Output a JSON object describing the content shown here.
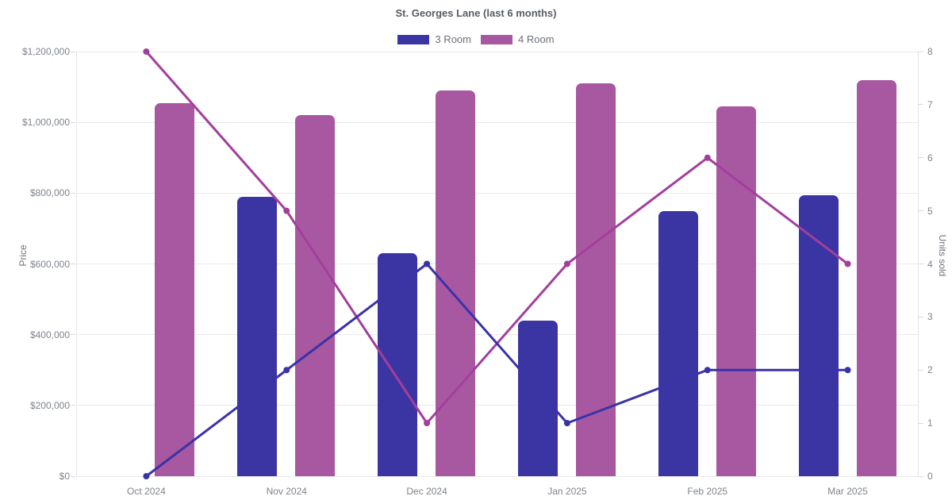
{
  "title": "St. Georges Lane (last 6 months)",
  "legend": {
    "position": "top",
    "items": [
      {
        "label": "3 Room",
        "color": "#3b35a3"
      },
      {
        "label": "4 Room",
        "color": "#a858a1"
      }
    ]
  },
  "chart_data": {
    "type": "bar",
    "subtype": "grouped bars (price, left axis) + lines with point markers (units sold, right axis)",
    "title": "St. Georges Lane (last 6 months)",
    "categories": [
      "Oct 2024",
      "Nov 2024",
      "Dec 2024",
      "Jan 2025",
      "Feb 2025",
      "Mar 2025"
    ],
    "bar_series": [
      {
        "name": "3 Room",
        "yaxis": "left",
        "color": "#3b35a3",
        "values": [
          null,
          790000,
          630000,
          440000,
          750000,
          795000
        ]
      },
      {
        "name": "4 Room",
        "yaxis": "left",
        "color": "#a858a1",
        "values": [
          1055000,
          1020000,
          1090000,
          1110000,
          1045000,
          1120000
        ]
      }
    ],
    "line_series": [
      {
        "name": "3 Room",
        "yaxis": "right",
        "color": "#3a32a8",
        "values": [
          0,
          2,
          4,
          1,
          2,
          2
        ]
      },
      {
        "name": "4 Room",
        "yaxis": "right",
        "color": "#a33e9d",
        "values": [
          8,
          5,
          1,
          4,
          6,
          4
        ]
      }
    ],
    "left_axis": {
      "title": "Price",
      "range": [
        0,
        1200000
      ],
      "tick_step": 200000,
      "tick_labels": [
        "$0",
        "$200,000",
        "$400,000",
        "$600,000",
        "$800,000",
        "$1,000,000",
        "$1,200,000"
      ]
    },
    "right_axis": {
      "title": "Units sold",
      "range": [
        0,
        8
      ],
      "tick_step": 1,
      "tick_labels": [
        "0",
        "1",
        "2",
        "3",
        "4",
        "5",
        "6",
        "7",
        "8"
      ]
    },
    "grid": "horizontal gridlines at left-axis ticks only",
    "legend_position": "top"
  }
}
